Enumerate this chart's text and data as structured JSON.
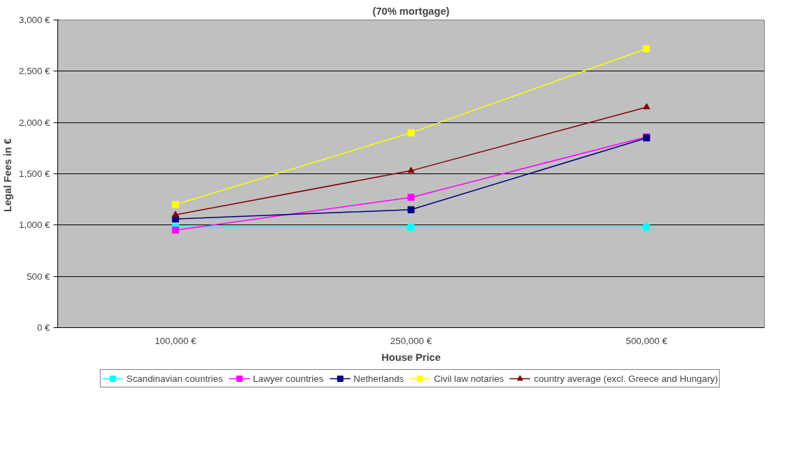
{
  "chart_data": {
    "type": "line",
    "title": "(70% mortgage)",
    "xlabel": "House Price",
    "ylabel": "Legal Fees in  €",
    "categories": [
      "100,000 €",
      "250,000 €",
      "500,000 €"
    ],
    "series": [
      {
        "name": "Scandinavian countries",
        "color": "#00ffff",
        "marker": "square",
        "values": [
          980,
          980,
          980
        ]
      },
      {
        "name": "Lawyer countries",
        "color": "#ff00ff",
        "marker": "square",
        "values": [
          950,
          1270,
          1860
        ]
      },
      {
        "name": "Netherlands",
        "color": "#000080",
        "marker": "square",
        "values": [
          1060,
          1150,
          1850
        ]
      },
      {
        "name": "Civil law notaries",
        "color": "#ffff00",
        "marker": "square",
        "values": [
          1200,
          1900,
          2720
        ]
      },
      {
        "name": "country average (excl. Greece and Hungary)",
        "color": "#800000",
        "marker": "triangle",
        "values": [
          1100,
          1530,
          2150
        ]
      }
    ],
    "ylim": [
      0,
      3000
    ],
    "yticks": [
      {
        "value": 0,
        "label": "0 €"
      },
      {
        "value": 500,
        "label": "500 €"
      },
      {
        "value": 1000,
        "label": "1,000 €"
      },
      {
        "value": 1500,
        "label": "1,500 €"
      },
      {
        "value": 2000,
        "label": "2,000 €"
      },
      {
        "value": 2500,
        "label": "2,500 €"
      },
      {
        "value": 3000,
        "label": "3,000 €"
      }
    ],
    "grid": "y",
    "legend": "bottom",
    "line_style": "solid"
  }
}
